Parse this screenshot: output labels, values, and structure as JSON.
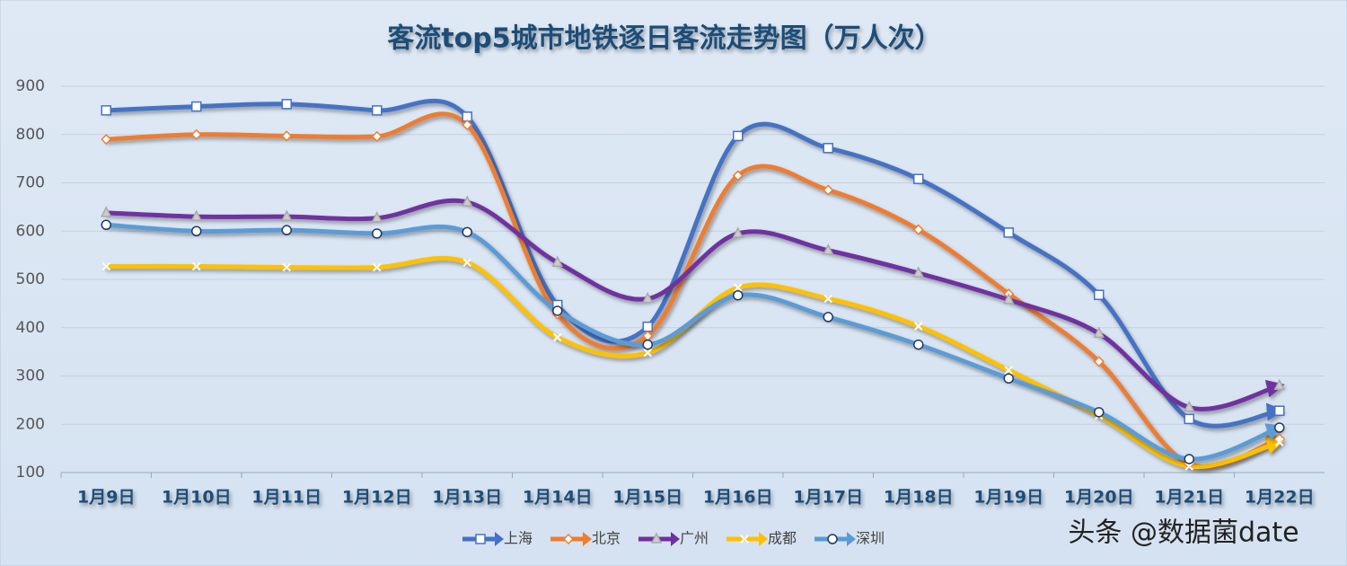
{
  "chart_data": {
    "type": "line",
    "title": "客流top5城市地铁逐日客流走势图（万人次）",
    "categories": [
      "1月9日",
      "1月10日",
      "1月11日",
      "1月12日",
      "1月13日",
      "1月14日",
      "1月15日",
      "1月16日",
      "1月17日",
      "1月18日",
      "1月19日",
      "1月20日",
      "1月21日",
      "1月22日"
    ],
    "series": [
      {
        "name": "上海",
        "color": "#4472c4",
        "marker": "square",
        "values": [
          850,
          858,
          863,
          850,
          837,
          447,
          402,
          797,
          772,
          708,
          597,
          468,
          211,
          228
        ]
      },
      {
        "name": "北京",
        "color": "#ed7d31",
        "marker": "diamond",
        "values": [
          790,
          800,
          797,
          796,
          820,
          428,
          383,
          715,
          685,
          603,
          470,
          330,
          118,
          170
        ]
      },
      {
        "name": "广州",
        "color": "#7030a0",
        "marker": "triangle",
        "values": [
          638,
          630,
          630,
          627,
          660,
          535,
          460,
          595,
          560,
          513,
          458,
          388,
          235,
          280
        ]
      },
      {
        "name": "成都",
        "color": "#ffc000",
        "marker": "x",
        "values": [
          527,
          527,
          525,
          525,
          535,
          380,
          348,
          483,
          460,
          403,
          312,
          218,
          113,
          163
        ]
      },
      {
        "name": "深圳",
        "color": "#5b9bd5",
        "marker": "circle",
        "values": [
          613,
          600,
          602,
          595,
          598,
          435,
          365,
          467,
          422,
          365,
          295,
          225,
          128,
          193
        ]
      }
    ],
    "ylim": [
      100,
      900
    ],
    "yticks": [
      100,
      200,
      300,
      400,
      500,
      600,
      700,
      800,
      900
    ],
    "grid": true,
    "legend": "bottom",
    "smooth": true,
    "watermark": "头条 @数据菌date"
  }
}
